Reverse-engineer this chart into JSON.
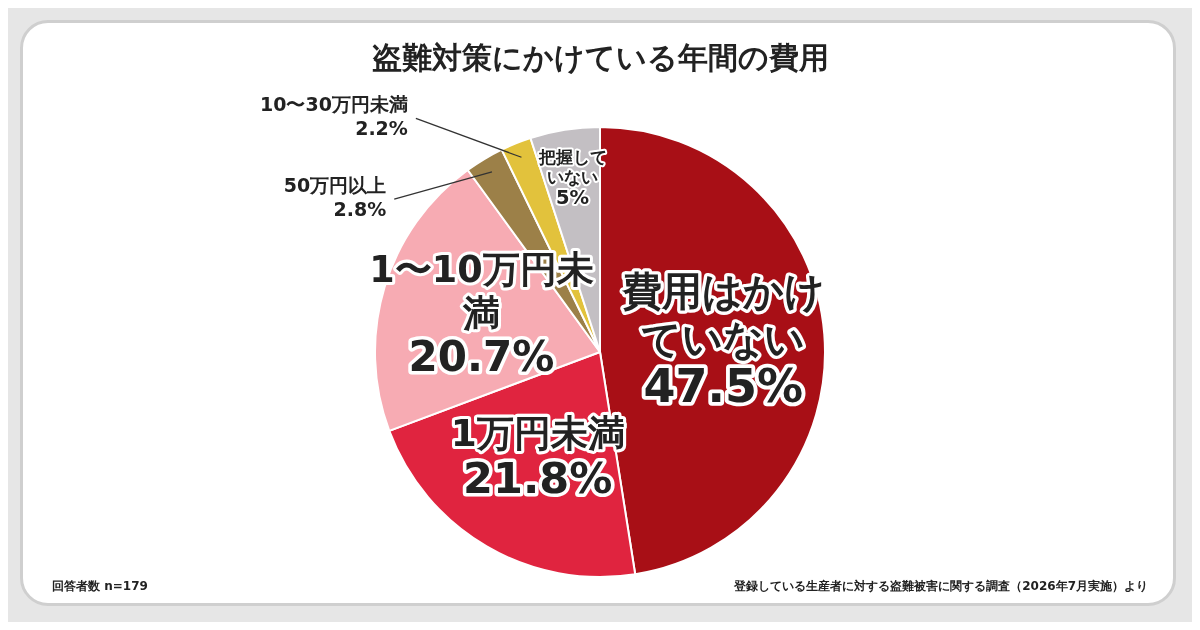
{
  "chart_data": {
    "type": "pie",
    "title": "盗難対策にかけている年間の費用",
    "categories": [
      "費用はかけていない",
      "1万円未満",
      "1〜10万円未満",
      "50万円以上",
      "10〜30万円未満",
      "把握していない"
    ],
    "values": [
      47.5,
      21.8,
      20.7,
      2.8,
      2.2,
      5
    ],
    "colors": [
      "#a80f16",
      "#e0243f",
      "#f7abb3",
      "#9c8048",
      "#e2c23c",
      "#c3bfc3"
    ],
    "value_labels": [
      "47.5%",
      "21.8%",
      "20.7%",
      "2.8%",
      "2.2%",
      "5%"
    ],
    "legend": false,
    "annotations": [
      "回答者数 n=179",
      "登録している生産者に対する盗難被害に関する調査（2026年7月実施）より"
    ]
  }
}
